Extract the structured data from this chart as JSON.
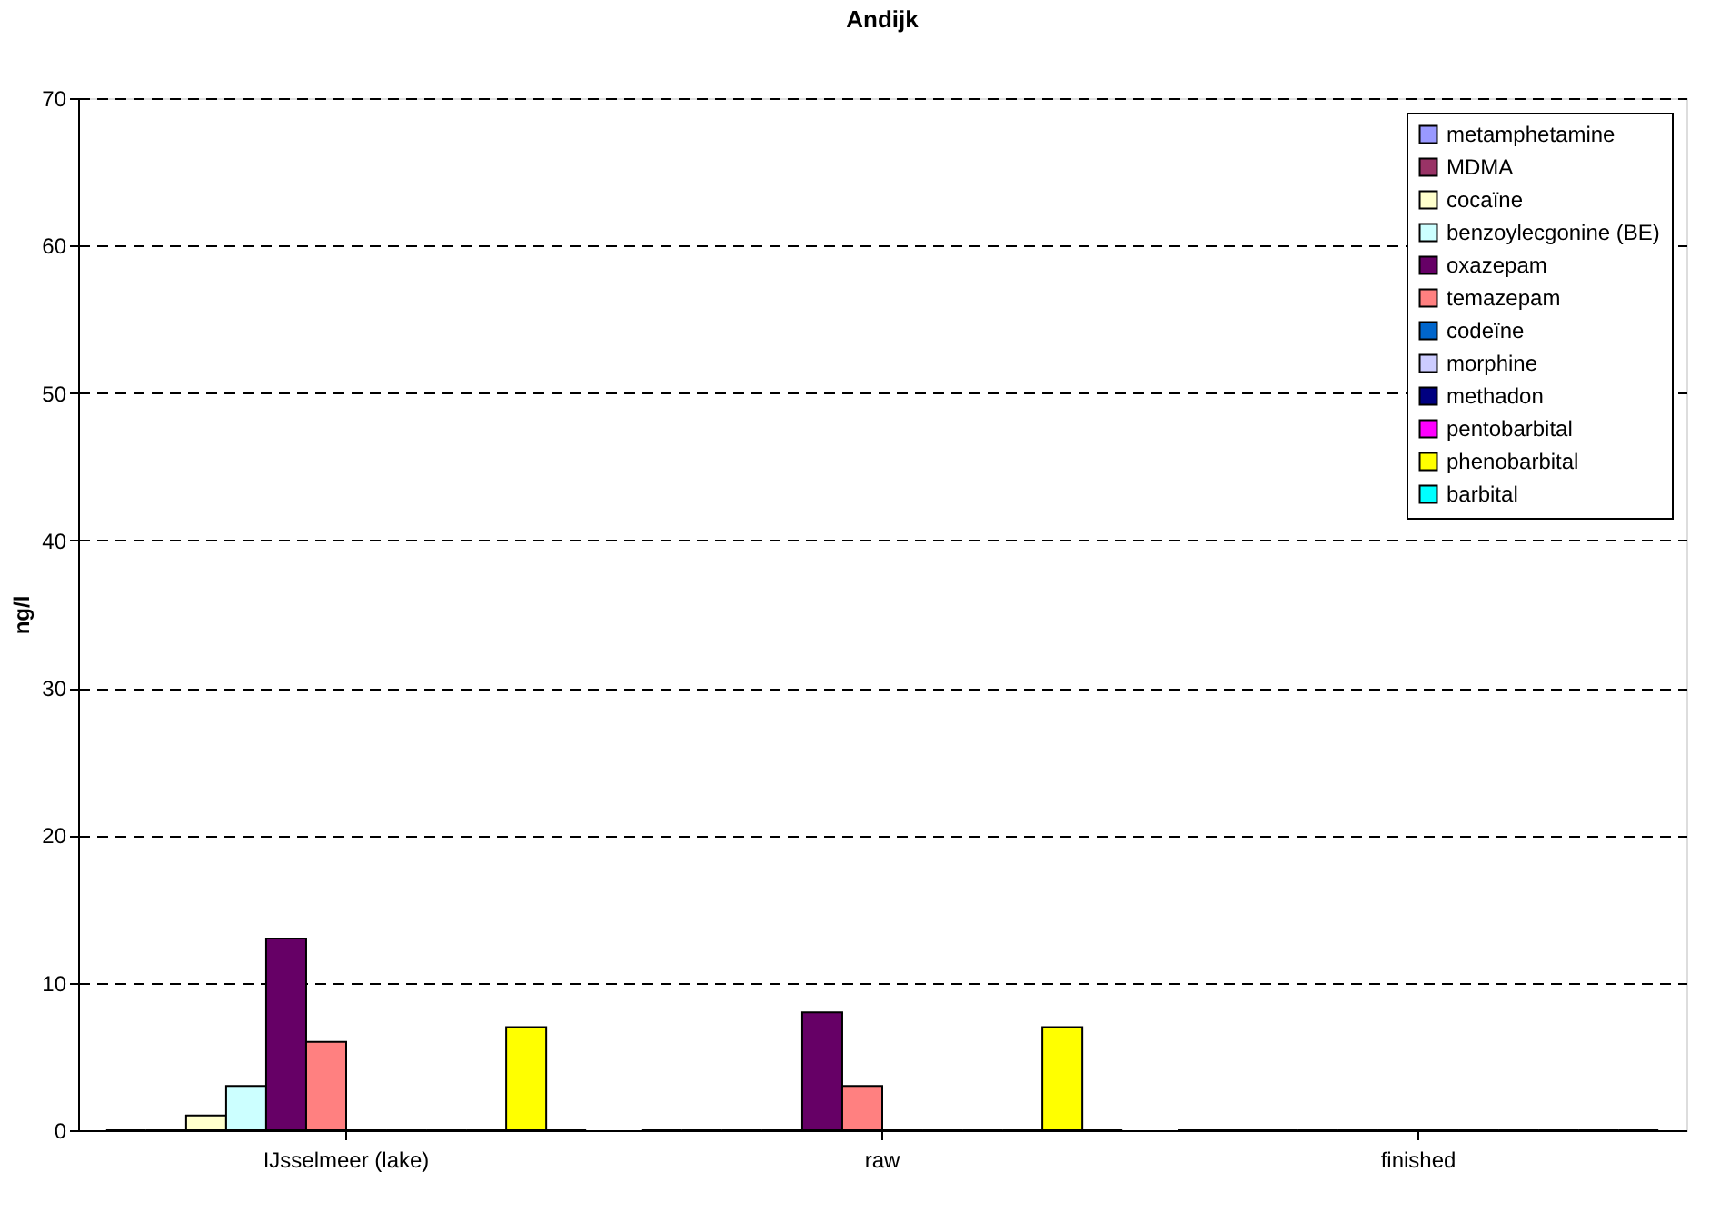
{
  "chart_data": {
    "type": "bar",
    "title": "Andijk",
    "ylabel": "ng/l",
    "categories": [
      "IJsselmeer (lake)",
      "raw",
      "finished"
    ],
    "series": [
      {
        "name": "metamphetamine",
        "color": "#9999ff",
        "values": [
          0,
          0,
          0
        ]
      },
      {
        "name": "MDMA",
        "color": "#993366",
        "values": [
          0,
          0,
          0
        ]
      },
      {
        "name": "cocaïne",
        "color": "#ffffcc",
        "values": [
          1,
          0,
          0
        ]
      },
      {
        "name": "benzoylecgonine (BE)",
        "color": "#ccffff",
        "values": [
          3,
          0,
          0
        ]
      },
      {
        "name": "oxazepam",
        "color": "#660066",
        "values": [
          13,
          8,
          0
        ]
      },
      {
        "name": "temazepam",
        "color": "#ff8080",
        "values": [
          6,
          3,
          0
        ]
      },
      {
        "name": "codeïne",
        "color": "#0066cc",
        "values": [
          0,
          0,
          0
        ]
      },
      {
        "name": "morphine",
        "color": "#ccccff",
        "values": [
          0,
          0,
          0
        ]
      },
      {
        "name": "methadon",
        "color": "#000080",
        "values": [
          0,
          0,
          0
        ]
      },
      {
        "name": "pentobarbital",
        "color": "#ff00ff",
        "values": [
          0,
          0,
          0
        ]
      },
      {
        "name": "phenobarbital",
        "color": "#ffff00",
        "values": [
          7,
          7,
          0
        ]
      },
      {
        "name": "barbital",
        "color": "#00ffff",
        "values": [
          0,
          0,
          0
        ]
      }
    ],
    "ylim": [
      0,
      70
    ],
    "yticks": [
      0,
      10,
      20,
      30,
      40,
      50,
      60,
      70
    ],
    "grid": "y",
    "legend": "top right"
  }
}
